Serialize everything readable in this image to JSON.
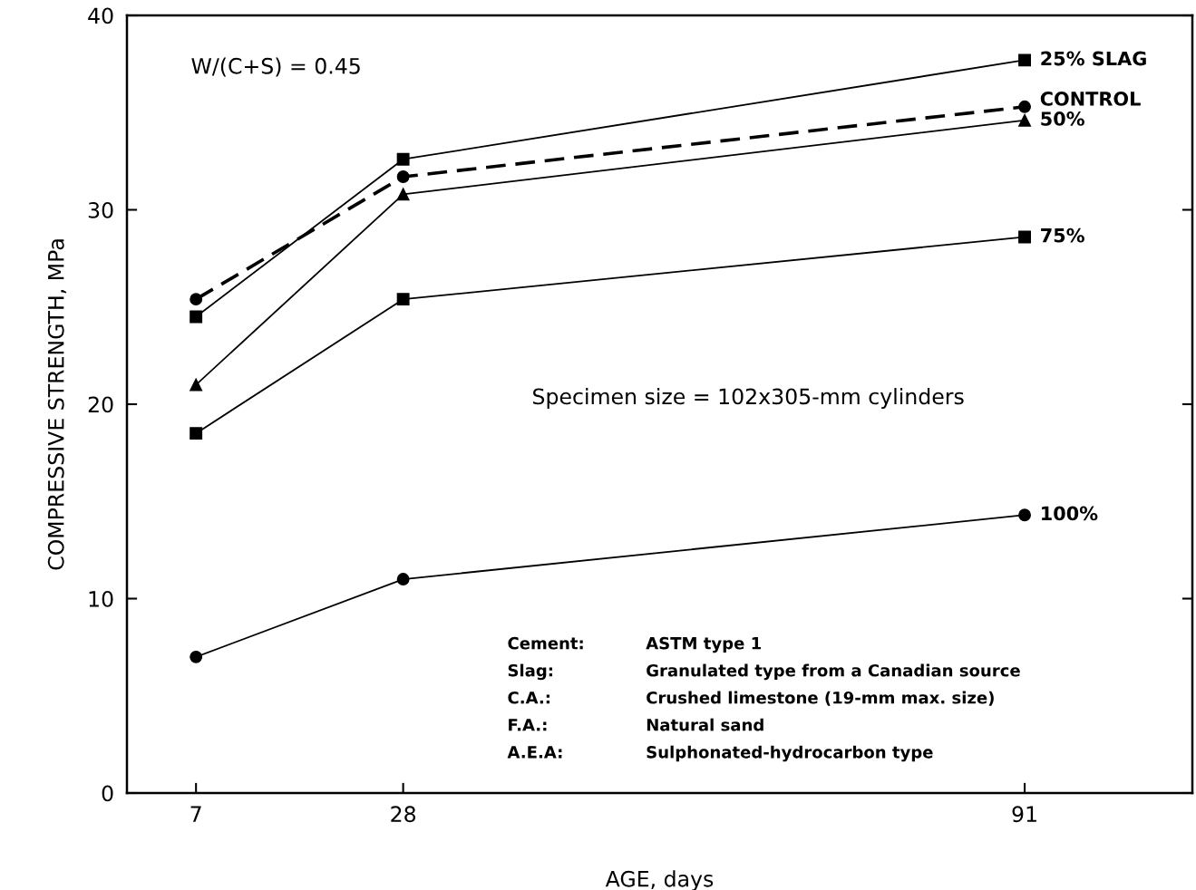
{
  "chart_data": {
    "type": "line",
    "xlabel": "AGE, days",
    "ylabel": "COMPRESSIVE STRENGTH, MPa",
    "x": [
      7,
      28,
      91
    ],
    "xlim": [
      0,
      108
    ],
    "xticks": [
      7,
      28,
      91
    ],
    "ylim": [
      0,
      40
    ],
    "yticks": [
      0,
      10,
      20,
      30,
      40
    ],
    "grid": false,
    "series": [
      {
        "name": "25% SLAG",
        "color": "#000000",
        "values": [
          24.5,
          32.6,
          37.7
        ],
        "marker": "square",
        "line_style": "solid"
      },
      {
        "name": "CONTROL",
        "color": "#000000",
        "values": [
          25.4,
          31.7,
          35.3
        ],
        "marker": "circle",
        "line_style": "dashed"
      },
      {
        "name": "50%",
        "color": "#000000",
        "values": [
          21.0,
          30.8,
          34.6
        ],
        "marker": "triangle",
        "line_style": "solid"
      },
      {
        "name": "75%",
        "color": "#000000",
        "values": [
          18.5,
          25.4,
          28.6
        ],
        "marker": "square",
        "line_style": "solid"
      },
      {
        "name": "100%",
        "color": "#000000",
        "values": [
          7.0,
          11.0,
          14.3
        ],
        "marker": "circle",
        "line_style": "solid"
      }
    ],
    "annotations": [
      "W/(C+S) = 0.45",
      "Specimen size = 102x305-mm cylinders",
      "Cement:",
      "ASTM type 1",
      "Slag:",
      "Granulated type from a Canadian source",
      "C.A.:",
      "Crushed limestone (19-mm max. size)",
      "F.A.:",
      "Natural sand",
      "A.E.A:",
      "Sulphonated-hydrocarbon type"
    ]
  }
}
